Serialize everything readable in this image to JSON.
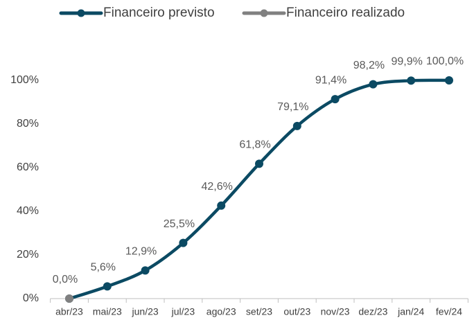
{
  "chart_data": {
    "type": "line",
    "categories": [
      "abr/23",
      "mai/23",
      "jun/23",
      "jul/23",
      "ago/23",
      "set/23",
      "out/23",
      "nov/23",
      "dez/23",
      "jan/24",
      "fev/24"
    ],
    "series": [
      {
        "name": "Financeiro previsto",
        "color": "#0b4a63",
        "values": [
          0,
          5.6,
          12.9,
          25.5,
          42.6,
          61.8,
          79.1,
          91.4,
          98.2,
          99.9,
          100
        ],
        "value_labels": [
          "0,0%",
          "5,6%",
          "12,9%",
          "25,5%",
          "42,6%",
          "61,8%",
          "79,1%",
          "91,4%",
          "98,2%",
          "99,9%",
          "100,0%"
        ]
      },
      {
        "name": "Financeiro realizado",
        "color": "#808080",
        "values": [
          0,
          null,
          null,
          null,
          null,
          null,
          null,
          null,
          null,
          null,
          null
        ]
      }
    ],
    "ylim": [
      0,
      100
    ],
    "yticks": [
      {
        "value": 0,
        "label": "0%"
      },
      {
        "value": 20,
        "label": "20%"
      },
      {
        "value": 40,
        "label": "40%"
      },
      {
        "value": 60,
        "label": "60%"
      },
      {
        "value": 80,
        "label": "80%"
      },
      {
        "value": 100,
        "label": "100%"
      }
    ],
    "legend": "top",
    "grid": false
  }
}
